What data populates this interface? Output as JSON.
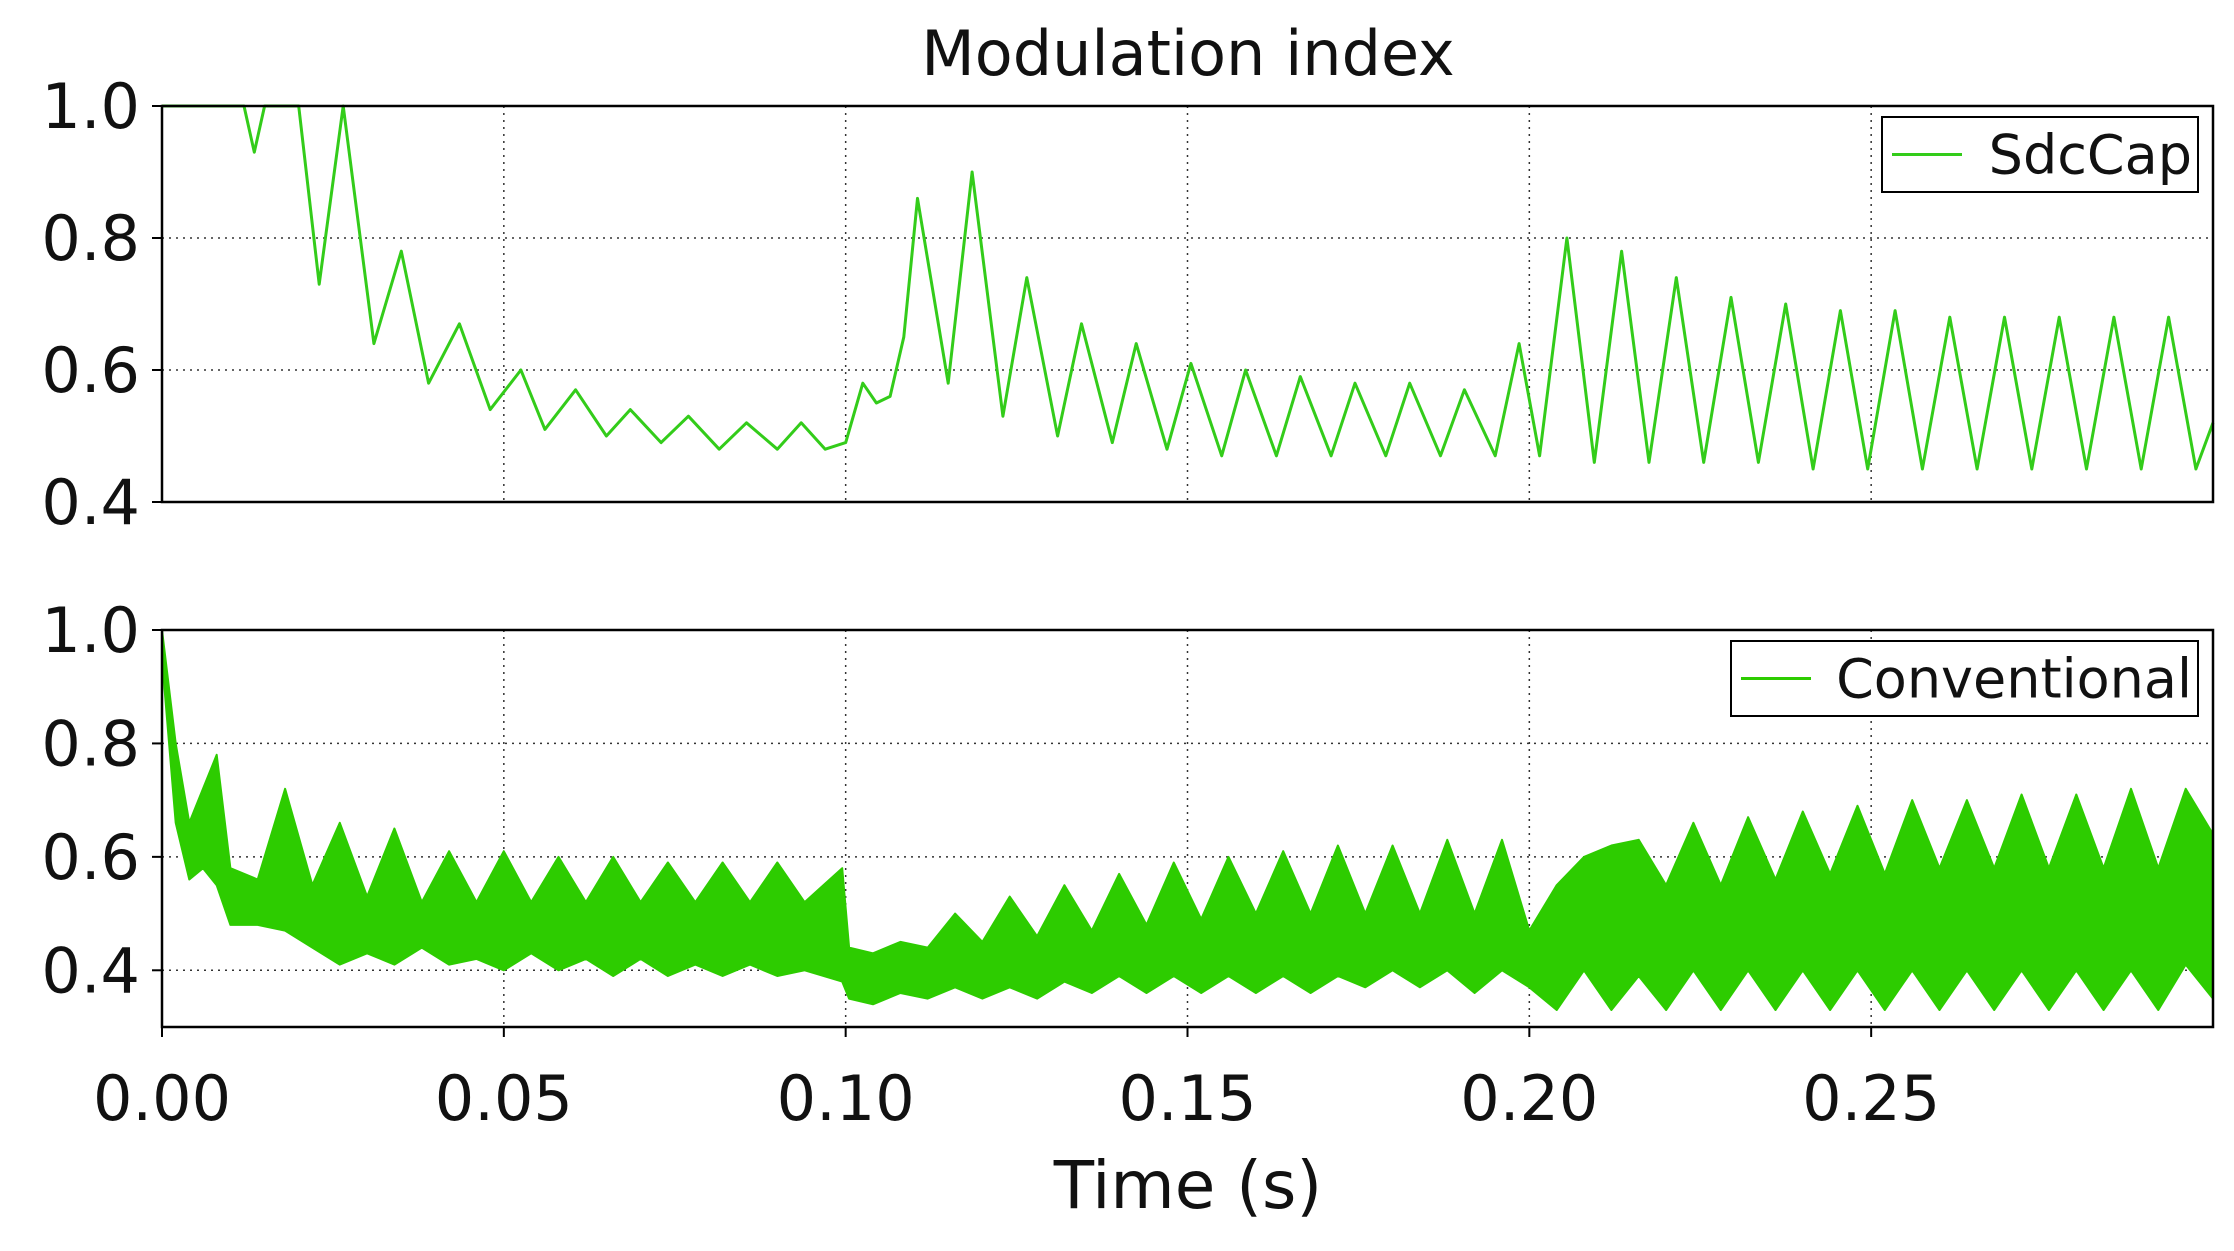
{
  "title": "Modulation index",
  "chart_data": [
    {
      "type": "line",
      "title": "Modulation index",
      "xlabel": "Time (s)",
      "ylabel": "",
      "xlim": [
        0,
        0.3
      ],
      "ylim": [
        0.4,
        1.0
      ],
      "xticks": [
        "0.00",
        "0.05",
        "0.10",
        "0.15",
        "0.20",
        "0.25"
      ],
      "yticks": [
        "0.4",
        "0.6",
        "0.8",
        "1.0"
      ],
      "grid": true,
      "legend_position": "top-right",
      "color": "#33cc1a",
      "series": [
        {
          "name": "SdcCap",
          "x": [
            0,
            0.012,
            0.0135,
            0.015,
            0.0165,
            0.018,
            0.0195,
            0.02,
            0.023,
            0.0265,
            0.031,
            0.035,
            0.039,
            0.0435,
            0.048,
            0.0525,
            0.056,
            0.0605,
            0.065,
            0.0685,
            0.073,
            0.077,
            0.0815,
            0.0855,
            0.09,
            0.0935,
            0.097,
            0.1,
            0.1025,
            0.1045,
            0.1065,
            0.1085,
            0.1105,
            0.115,
            0.1185,
            0.123,
            0.1265,
            0.131,
            0.1345,
            0.139,
            0.1425,
            0.147,
            0.1505,
            0.155,
            0.1585,
            0.163,
            0.1665,
            0.171,
            0.1745,
            0.179,
            0.1825,
            0.187,
            0.1905,
            0.195,
            0.1985,
            0.2015,
            0.2055,
            0.2095,
            0.2135,
            0.2175,
            0.2215,
            0.2255,
            0.2295,
            0.2335,
            0.2375,
            0.2415,
            0.2455,
            0.2495,
            0.2535,
            0.2575,
            0.2615,
            0.2655,
            0.2695,
            0.2735,
            0.2775,
            0.2815,
            0.2855,
            0.2895,
            0.2935,
            0.2975,
            0.3
          ],
          "values": [
            1.0,
            1.0,
            0.93,
            1.0,
            1.0,
            1.0,
            1.0,
            1.0,
            0.73,
            1.0,
            0.64,
            0.78,
            0.58,
            0.67,
            0.54,
            0.6,
            0.51,
            0.57,
            0.5,
            0.54,
            0.49,
            0.53,
            0.48,
            0.52,
            0.48,
            0.52,
            0.48,
            0.49,
            0.58,
            0.55,
            0.56,
            0.65,
            0.86,
            0.58,
            0.9,
            0.53,
            0.74,
            0.5,
            0.67,
            0.49,
            0.64,
            0.48,
            0.61,
            0.47,
            0.6,
            0.47,
            0.59,
            0.47,
            0.58,
            0.47,
            0.58,
            0.47,
            0.57,
            0.47,
            0.64,
            0.47,
            0.8,
            0.46,
            0.78,
            0.46,
            0.74,
            0.46,
            0.71,
            0.46,
            0.7,
            0.45,
            0.69,
            0.45,
            0.69,
            0.45,
            0.68,
            0.45,
            0.68,
            0.45,
            0.68,
            0.45,
            0.68,
            0.45,
            0.68,
            0.45,
            0.52
          ]
        }
      ]
    },
    {
      "type": "area",
      "title": "",
      "xlabel": "Time (s)",
      "ylabel": "",
      "xlim": [
        0,
        0.3
      ],
      "ylim": [
        0.3,
        1.0
      ],
      "xticks": [
        "0.00",
        "0.05",
        "0.10",
        "0.15",
        "0.20",
        "0.25"
      ],
      "yticks": [
        "0.4",
        "0.6",
        "0.8",
        "1.0"
      ],
      "grid": true,
      "legend_position": "top-right",
      "color": "#2dcc00",
      "series": [
        {
          "name": "Conventional",
          "description": "band between lower and upper envelope",
          "x": [
            0,
            0.002,
            0.004,
            0.006,
            0.008,
            0.01,
            0.014,
            0.018,
            0.022,
            0.026,
            0.03,
            0.034,
            0.038,
            0.042,
            0.046,
            0.05,
            0.054,
            0.058,
            0.062,
            0.066,
            0.07,
            0.074,
            0.078,
            0.082,
            0.086,
            0.09,
            0.094,
            0.0995,
            0.1005,
            0.104,
            0.108,
            0.112,
            0.116,
            0.12,
            0.124,
            0.128,
            0.132,
            0.136,
            0.14,
            0.144,
            0.148,
            0.152,
            0.156,
            0.16,
            0.164,
            0.168,
            0.172,
            0.176,
            0.18,
            0.184,
            0.188,
            0.192,
            0.196,
            0.2,
            0.204,
            0.208,
            0.212,
            0.216,
            0.22,
            0.224,
            0.228,
            0.232,
            0.236,
            0.24,
            0.244,
            0.248,
            0.252,
            0.256,
            0.26,
            0.264,
            0.268,
            0.272,
            0.276,
            0.28,
            0.284,
            0.288,
            0.292,
            0.296,
            0.3
          ],
          "lower": [
            0.95,
            0.66,
            0.56,
            0.58,
            0.55,
            0.48,
            0.48,
            0.47,
            0.44,
            0.41,
            0.43,
            0.41,
            0.44,
            0.41,
            0.42,
            0.4,
            0.43,
            0.4,
            0.42,
            0.39,
            0.42,
            0.39,
            0.41,
            0.39,
            0.41,
            0.39,
            0.4,
            0.38,
            0.35,
            0.34,
            0.36,
            0.35,
            0.37,
            0.35,
            0.37,
            0.35,
            0.38,
            0.36,
            0.39,
            0.36,
            0.39,
            0.36,
            0.39,
            0.36,
            0.39,
            0.36,
            0.39,
            0.37,
            0.4,
            0.37,
            0.4,
            0.36,
            0.4,
            0.37,
            0.33,
            0.4,
            0.33,
            0.39,
            0.33,
            0.4,
            0.33,
            0.4,
            0.33,
            0.4,
            0.33,
            0.4,
            0.33,
            0.4,
            0.33,
            0.4,
            0.33,
            0.4,
            0.33,
            0.4,
            0.33,
            0.4,
            0.33,
            0.41,
            0.35
          ],
          "upper": [
            1.0,
            0.8,
            0.66,
            0.72,
            0.78,
            0.58,
            0.56,
            0.72,
            0.55,
            0.66,
            0.53,
            0.65,
            0.52,
            0.61,
            0.52,
            0.61,
            0.52,
            0.6,
            0.52,
            0.6,
            0.52,
            0.59,
            0.52,
            0.59,
            0.52,
            0.59,
            0.52,
            0.58,
            0.44,
            0.43,
            0.45,
            0.44,
            0.5,
            0.45,
            0.53,
            0.46,
            0.55,
            0.47,
            0.57,
            0.48,
            0.59,
            0.49,
            0.6,
            0.5,
            0.61,
            0.5,
            0.62,
            0.5,
            0.62,
            0.5,
            0.63,
            0.5,
            0.63,
            0.47,
            0.55,
            0.6,
            0.62,
            0.63,
            0.55,
            0.66,
            0.55,
            0.67,
            0.56,
            0.68,
            0.57,
            0.69,
            0.57,
            0.7,
            0.58,
            0.7,
            0.58,
            0.71,
            0.58,
            0.71,
            0.58,
            0.72,
            0.58,
            0.72,
            0.64
          ]
        }
      ]
    }
  ]
}
